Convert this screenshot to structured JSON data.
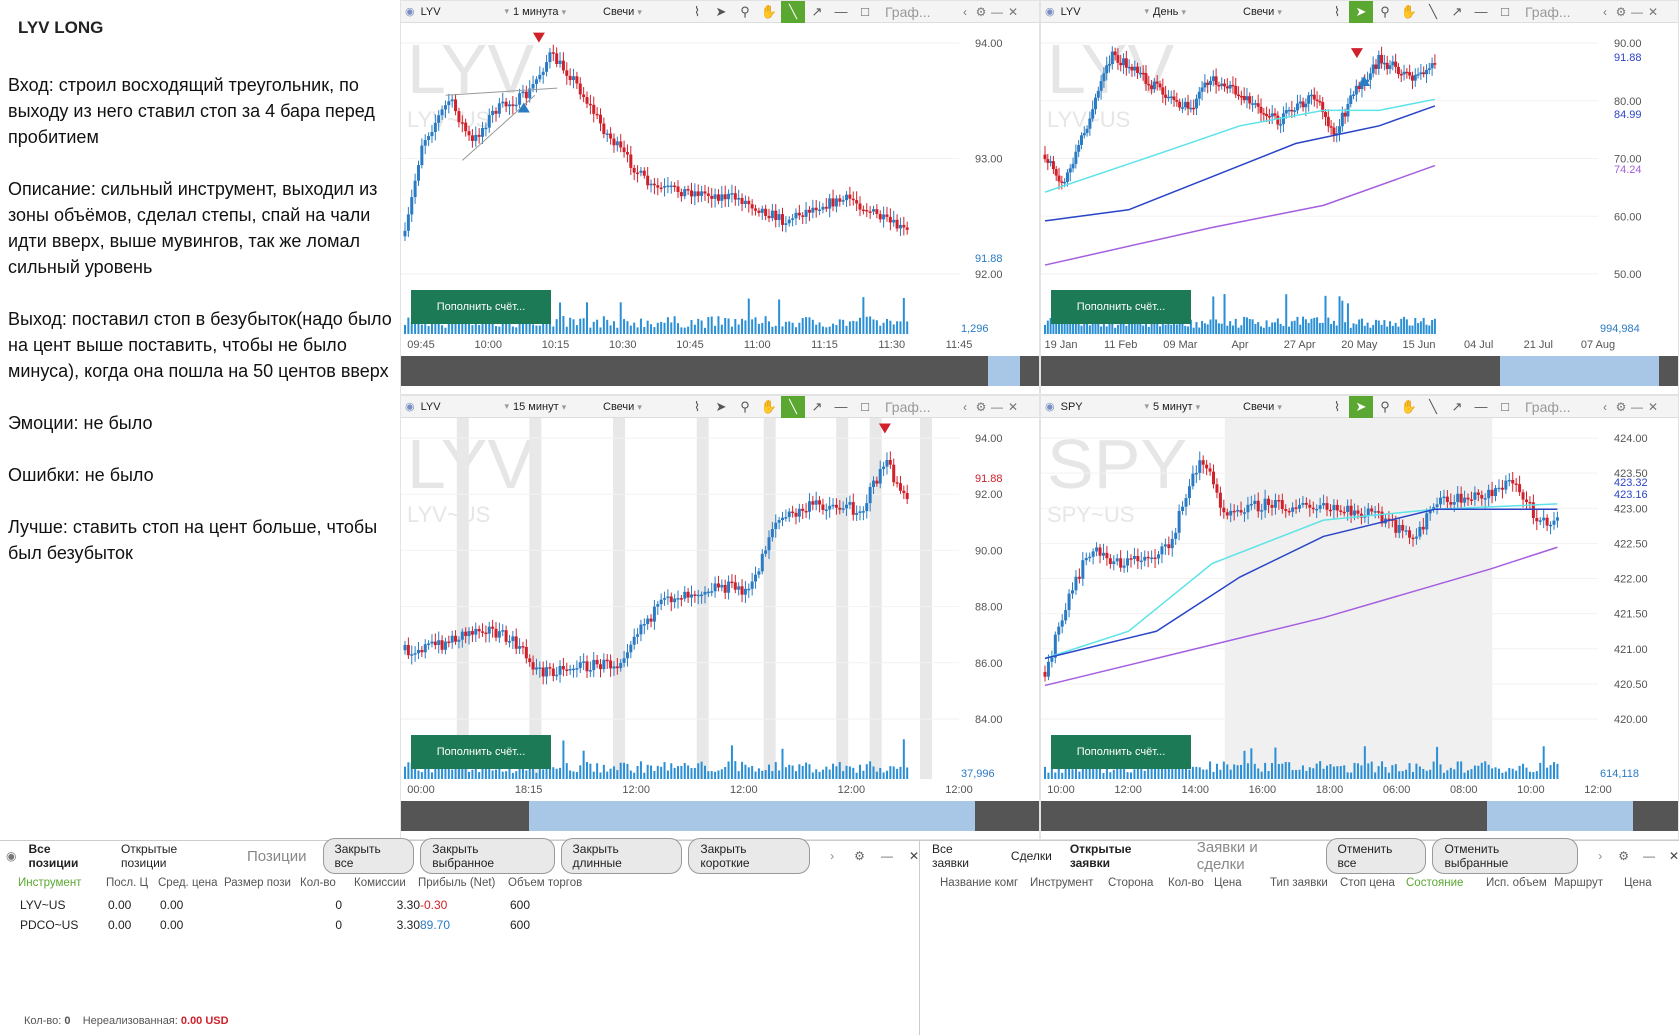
{
  "notes": {
    "title": "LYV LONG",
    "paragraphs": [
      "Вход: строил восходящий треугольник, по выходу из него ставил стоп за 4 бара перед пробитием",
      "Описание: сильный инструмент, выходил из зоны объёмов, сделал степы, спай на чали идти вверх, выше мувингов, так же ломал сильный уровень",
      "Выход: поставил стоп в безубыток(надо было на цент выше поставить, чтобы не было минуса), когда она пошла на 50 центов вверх",
      "Эмоции: не было",
      "Ошибки: не было",
      "Лучше: ставить стоп на цент больше, чтобы был безубыток"
    ]
  },
  "toolbar_common": {
    "type": "Свечи",
    "more": "Граф...",
    "topup": "Пополнить счёт..."
  },
  "charts": [
    {
      "symbol": "LYV",
      "timeframe": "1 минута",
      "wm": "LYV",
      "wm_sub": "LYV~US",
      "price_labels": [
        "94.00",
        "93.00",
        "92.00"
      ],
      "last_price": "91.88",
      "time_labels": [
        "09:45",
        "10:00",
        "10:15",
        "10:30",
        "10:45",
        "11:00",
        "11:15",
        "11:30",
        "11:45"
      ],
      "volume_label": "1,296"
    },
    {
      "symbol": "LYV",
      "timeframe": "День",
      "wm": "LYV",
      "wm_sub": "LYV~US",
      "price_labels": [
        "90.00",
        "80.00",
        "70.00",
        "60.00",
        "50.00"
      ],
      "marker_labels": [
        "91.88",
        "84.99",
        "74.24"
      ],
      "time_labels": [
        "19 Jan",
        "11 Feb",
        "09 Mar",
        "Apr",
        "27 Apr",
        "20 May",
        "15 Jun",
        "04 Jul",
        "21 Jul",
        "07 Aug"
      ],
      "volume_label": "994,984"
    },
    {
      "symbol": "LYV",
      "timeframe": "15 минут",
      "wm": "LYV",
      "wm_sub": "LYV~US",
      "price_labels": [
        "94.00",
        "92.00",
        "90.00",
        "88.00",
        "86.00",
        "84.00"
      ],
      "last_price": "91.88",
      "time_labels": [
        "00:00",
        "18:15",
        "12:00",
        "12:00",
        "12:00",
        "12:00"
      ],
      "volume_label": "37,996"
    },
    {
      "symbol": "SPY",
      "timeframe": "5 минут",
      "wm": "SPY",
      "wm_sub": "SPY~US",
      "price_labels": [
        "424.00",
        "423.50",
        "423.00",
        "422.50",
        "422.00",
        "421.50",
        "421.00",
        "420.50",
        "420.00"
      ],
      "marker_labels": [
        "423.32",
        "423.16"
      ],
      "time_labels": [
        "10:00",
        "12:00",
        "14:00",
        "16:00",
        "18:00",
        "06:00",
        "08:00",
        "10:00",
        "12:00"
      ],
      "volume_label": "614,118"
    }
  ],
  "positions": {
    "tabs": [
      "Все позиции",
      "Открытые позиции"
    ],
    "title": "Позиции",
    "buttons": [
      "Закрыть все",
      "Закрыть выбранное",
      "Закрыть длинные",
      "Закрыть короткие"
    ],
    "columns": [
      "Инструмент",
      "Посл. Ц",
      "Сред. цена",
      "Размер пози",
      "Кол-во",
      "Комиссии",
      "Прибыль (Net)",
      "Объем торгов"
    ],
    "rows": [
      {
        "instrument": "LYV~US",
        "last": "0.00",
        "avg": "0.00",
        "size": "",
        "qty": "0",
        "fee": "3.30",
        "pnl": "-0.30",
        "vol": "600"
      },
      {
        "instrument": "PDCO~US",
        "last": "0.00",
        "avg": "0.00",
        "size": "",
        "qty": "0",
        "fee": "3.30",
        "pnl": "89.70",
        "vol": "600"
      }
    ],
    "footer_qty_label": "Кол-во:",
    "footer_qty": "0",
    "footer_unreal_label": "Нереализованная:",
    "footer_unreal": "0.00 USD"
  },
  "orders": {
    "tabs": [
      "Все заявки",
      "Сделки",
      "Открытые заявки"
    ],
    "title": "Заявки и сделки",
    "buttons": [
      "Отменить все",
      "Отменить выбранные"
    ],
    "columns": [
      "Название комг",
      "Инструмент",
      "Сторона",
      "Кол-во",
      "Цена",
      "Тип заявки",
      "Стоп цена",
      "Состояние",
      "Исп. объем",
      "Маршрут",
      "Цена"
    ]
  },
  "colors": {
    "up": "#2a7bc4",
    "down": "#d0212b",
    "topup": "#1c7a57",
    "ma_cyan": "#5de3e8",
    "ma_blue": "#2a44c8",
    "ma_purple": "#a45ee0"
  }
}
